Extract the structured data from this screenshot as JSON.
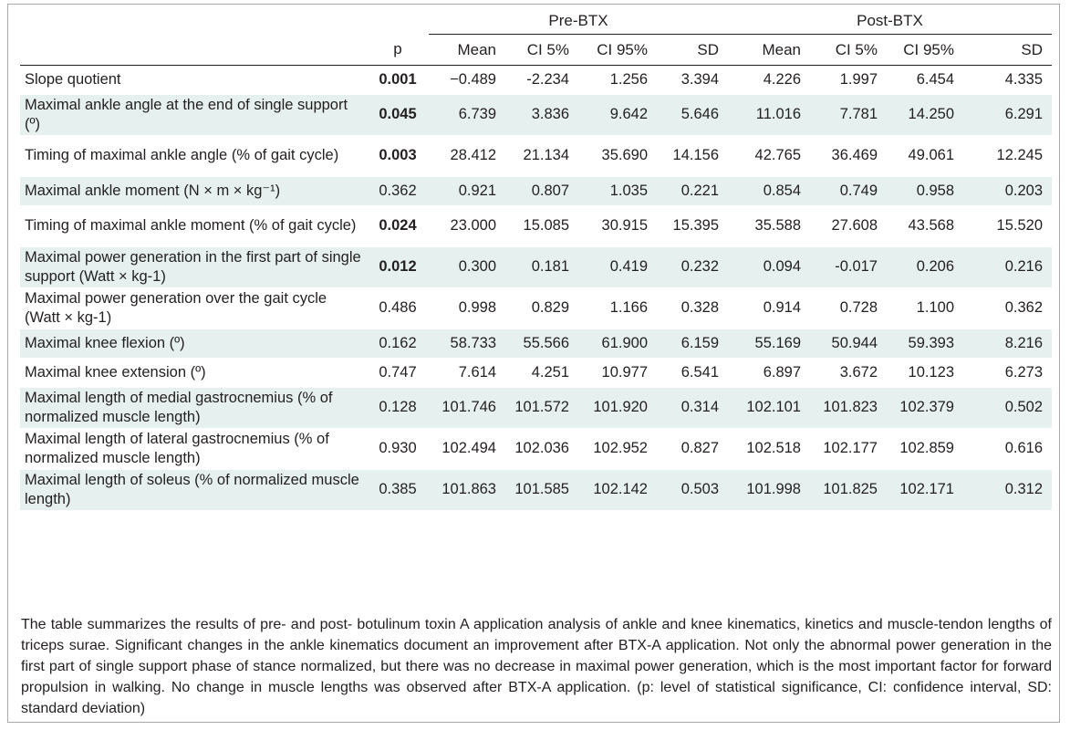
{
  "table": {
    "groups": [
      "Pre-BTX",
      "Post-BTX"
    ],
    "columns": [
      "p",
      "Mean",
      "CI 5%",
      "CI 95%",
      "SD",
      "Mean",
      "CI 5%",
      "CI 95%",
      "SD"
    ],
    "rows": [
      {
        "label": "Slope quotient",
        "p": "0.001",
        "sig": true,
        "values": [
          "−0.489",
          "-2.234",
          "1.256",
          "3.394",
          "4.226",
          "1.997",
          "6.454",
          "4.335"
        ]
      },
      {
        "label": "Maximal ankle angle at the end of single support (º)",
        "p": "0.045",
        "sig": true,
        "values": [
          "6.739",
          "3.836",
          "9.642",
          "5.646",
          "11.016",
          "7.781",
          "14.250",
          "6.291"
        ]
      },
      {
        "label": "Timing of maximal ankle angle (% of gait cycle)",
        "p": "0.003",
        "sig": true,
        "values": [
          "28.412",
          "21.134",
          "35.690",
          "14.156",
          "42.765",
          "36.469",
          "49.061",
          "12.245"
        ]
      },
      {
        "label": "Maximal ankle moment (N × m × kg⁻¹)",
        "p": "0.362",
        "sig": false,
        "values": [
          "0.921",
          "0.807",
          "1.035",
          "0.221",
          "0.854",
          "0.749",
          "0.958",
          "0.203"
        ]
      },
      {
        "label": "Timing of maximal ankle moment (% of gait cycle)",
        "p": "0.024",
        "sig": true,
        "values": [
          "23.000",
          "15.085",
          "30.915",
          "15.395",
          "35.588",
          "27.608",
          "43.568",
          "15.520"
        ]
      },
      {
        "label": "Maximal power generation in the first part of single support (Watt × kg-1)",
        "p": "0.012",
        "sig": true,
        "values": [
          "0.300",
          "0.181",
          "0.419",
          "0.232",
          "0.094",
          "-0.017",
          "0.206",
          "0.216"
        ]
      },
      {
        "label": "Maximal power generation over the gait cycle (Watt × kg-1)",
        "p": "0.486",
        "sig": false,
        "values": [
          "0.998",
          "0.829",
          "1.166",
          "0.328",
          "0.914",
          "0.728",
          "1.100",
          "0.362"
        ]
      },
      {
        "label": "Maximal knee flexion (º)",
        "p": "0.162",
        "sig": false,
        "values": [
          "58.733",
          "55.566",
          "61.900",
          "6.159",
          "55.169",
          "50.944",
          "59.393",
          "8.216"
        ]
      },
      {
        "label": "Maximal knee extension (º)",
        "p": "0.747",
        "sig": false,
        "values": [
          "7.614",
          "4.251",
          "10.977",
          "6.541",
          "6.897",
          "3.672",
          "10.123",
          "6.273"
        ]
      },
      {
        "label": "Maximal length of medial gastrocnemius (% of normalized muscle length)",
        "p": "0.128",
        "sig": false,
        "values": [
          "101.746",
          "101.572",
          "101.920",
          "0.314",
          "102.101",
          "101.823",
          "102.379",
          "0.502"
        ]
      },
      {
        "label": "Maximal length of lateral gastrocnemius (% of normalized muscle length)",
        "p": "0.930",
        "sig": false,
        "values": [
          "102.494",
          "102.036",
          "102.952",
          "0.827",
          "102.518",
          "102.177",
          "102.859",
          "0.616"
        ]
      },
      {
        "label": "Maximal length of soleus (% of normalized muscle length)",
        "p": "0.385",
        "sig": false,
        "values": [
          "101.863",
          "101.585",
          "102.142",
          "0.503",
          "101.998",
          "101.825",
          "102.171",
          "0.312"
        ]
      }
    ]
  },
  "caption": "The table summarizes the results of pre- and post- botulinum toxin A application analysis of ankle and knee kinematics, kinetics and muscle-tendon lengths of triceps surae. Significant changes in the ankle kinematics document an improvement after BTX-A application. Not only the abnormal power generation in the first part of single support phase of stance normalized, but there was no decrease in maximal power generation, which is the most important factor for forward propulsion in walking. No change in muscle lengths was observed after BTX-A application. (p: level of statistical significance, CI: confidence interval, SD: standard deviation)",
  "colors": {
    "row_shade": "#e6f0ee",
    "border": "#a6a8ab",
    "text": "#231f20"
  }
}
